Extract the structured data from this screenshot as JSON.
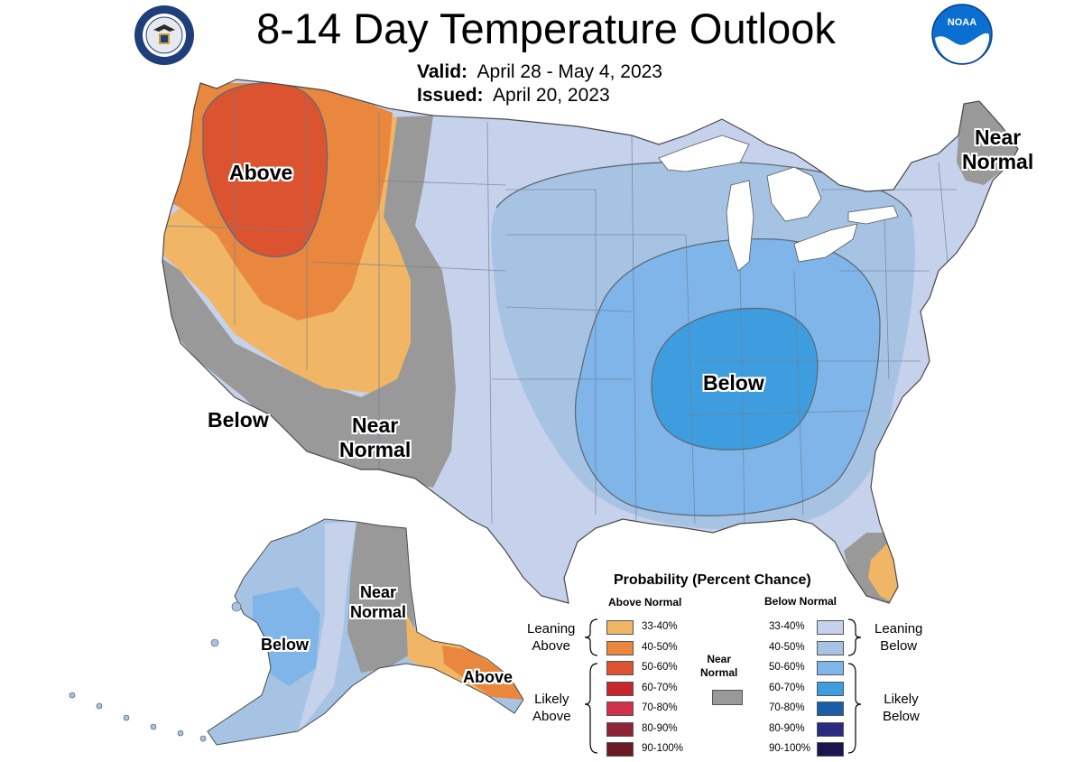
{
  "header": {
    "title": "8-14 Day Temperature Outlook",
    "valid_label": "Valid:",
    "valid_value": "April 28 - May 4, 2023",
    "issued_label": "Issued:",
    "issued_value": "April 20, 2023"
  },
  "logos": {
    "left": "department-of-commerce-seal",
    "right": "noaa-logo",
    "noaa_text": "NOAA"
  },
  "map_labels": {
    "above_nw": "Above",
    "near_normal_ne_line1": "Near",
    "near_normal_ne_line2": "Normal",
    "below_sw": "Below",
    "near_normal_sw_line1": "Near",
    "near_normal_sw_line2": "Normal",
    "below_central": "Below",
    "near_normal_ak_line1": "Near",
    "near_normal_ak_line2": "Normal",
    "below_ak": "Below",
    "above_ak": "Above"
  },
  "legend": {
    "title": "Probability (Percent Chance)",
    "above_header": "Above Normal",
    "below_header": "Below Normal",
    "near_normal_line1": "Near",
    "near_normal_line2": "Normal",
    "near_normal_color": "#999999",
    "leaning_above_line1": "Leaning",
    "leaning_above_line2": "Above",
    "likely_above_line1": "Likely",
    "likely_above_line2": "Above",
    "leaning_below_line1": "Leaning",
    "leaning_below_line2": "Below",
    "likely_below_line1": "Likely",
    "likely_below_line2": "Below",
    "above": [
      {
        "label": "33-40%",
        "color": "#f0b665"
      },
      {
        "label": "40-50%",
        "color": "#e9873f"
      },
      {
        "label": "50-60%",
        "color": "#dc5330"
      },
      {
        "label": "60-70%",
        "color": "#c7272a"
      },
      {
        "label": "70-80%",
        "color": "#d0304a"
      },
      {
        "label": "80-90%",
        "color": "#8e2436"
      },
      {
        "label": "90-100%",
        "color": "#6a1a22"
      }
    ],
    "below": [
      {
        "label": "33-40%",
        "color": "#c6d1ec"
      },
      {
        "label": "40-50%",
        "color": "#a7c3e4"
      },
      {
        "label": "50-60%",
        "color": "#7fb5e8"
      },
      {
        "label": "60-70%",
        "color": "#3e9ddf"
      },
      {
        "label": "70-80%",
        "color": "#1a5ea8"
      },
      {
        "label": "80-90%",
        "color": "#2a2a7e"
      },
      {
        "label": "90-100%",
        "color": "#1c1650"
      }
    ]
  }
}
